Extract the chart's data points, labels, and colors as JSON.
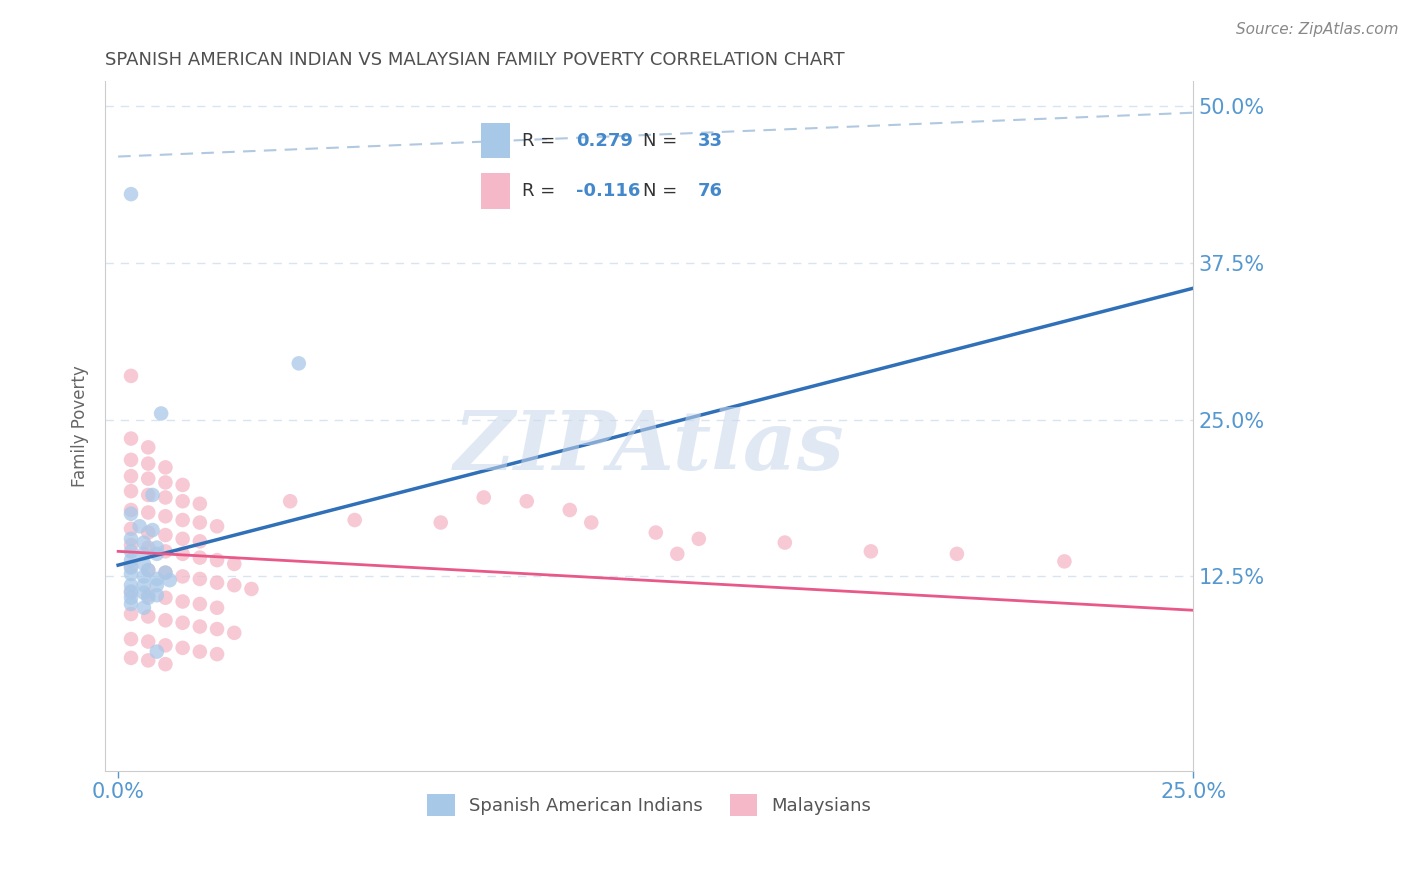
{
  "title": "SPANISH AMERICAN INDIAN VS MALAYSIAN FAMILY POVERTY CORRELATION CHART",
  "source": "Source: ZipAtlas.com",
  "ylabel": "Family Poverty",
  "watermark": "ZIPAtlas",
  "xlim": [
    -0.003,
    0.25
  ],
  "ylim": [
    -0.03,
    0.52
  ],
  "ytick_labels": [
    "12.5%",
    "25.0%",
    "37.5%",
    "50.0%"
  ],
  "ytick_values": [
    0.125,
    0.25,
    0.375,
    0.5
  ],
  "blue_R": 0.279,
  "blue_N": 33,
  "pink_R": -0.116,
  "pink_N": 76,
  "blue_color": "#a8c8e8",
  "pink_color": "#f4b8c8",
  "blue_line_color": "#3070b8",
  "pink_line_color": "#e85888",
  "label_color": "#5598d0",
  "title_color": "#505050",
  "grid_color": "#d8e4f0",
  "dashed_line_color": "#b0c8e0",
  "legend_text_color": "#4488cc",
  "legend_border_color": "#d0d8e8",
  "blue_trend": [
    0.0,
    0.134,
    0.25,
    0.355
  ],
  "pink_trend": [
    0.0,
    0.145,
    0.25,
    0.098
  ],
  "dashed_trend": [
    0.0,
    0.46,
    0.25,
    0.495
  ],
  "blue_dots": [
    [
      0.003,
      0.43
    ],
    [
      0.01,
      0.255
    ],
    [
      0.008,
      0.19
    ],
    [
      0.003,
      0.175
    ],
    [
      0.005,
      0.165
    ],
    [
      0.008,
      0.162
    ],
    [
      0.003,
      0.155
    ],
    [
      0.006,
      0.152
    ],
    [
      0.009,
      0.148
    ],
    [
      0.003,
      0.145
    ],
    [
      0.006,
      0.143
    ],
    [
      0.009,
      0.143
    ],
    [
      0.003,
      0.138
    ],
    [
      0.006,
      0.135
    ],
    [
      0.003,
      0.132
    ],
    [
      0.007,
      0.13
    ],
    [
      0.011,
      0.128
    ],
    [
      0.003,
      0.127
    ],
    [
      0.006,
      0.125
    ],
    [
      0.009,
      0.123
    ],
    [
      0.012,
      0.122
    ],
    [
      0.003,
      0.118
    ],
    [
      0.006,
      0.118
    ],
    [
      0.009,
      0.118
    ],
    [
      0.003,
      0.113
    ],
    [
      0.006,
      0.112
    ],
    [
      0.009,
      0.11
    ],
    [
      0.003,
      0.108
    ],
    [
      0.007,
      0.108
    ],
    [
      0.003,
      0.103
    ],
    [
      0.006,
      0.1
    ],
    [
      0.009,
      0.065
    ],
    [
      0.042,
      0.295
    ]
  ],
  "pink_dots": [
    [
      0.003,
      0.285
    ],
    [
      0.003,
      0.235
    ],
    [
      0.007,
      0.228
    ],
    [
      0.003,
      0.218
    ],
    [
      0.007,
      0.215
    ],
    [
      0.011,
      0.212
    ],
    [
      0.003,
      0.205
    ],
    [
      0.007,
      0.203
    ],
    [
      0.011,
      0.2
    ],
    [
      0.015,
      0.198
    ],
    [
      0.003,
      0.193
    ],
    [
      0.007,
      0.19
    ],
    [
      0.011,
      0.188
    ],
    [
      0.015,
      0.185
    ],
    [
      0.019,
      0.183
    ],
    [
      0.003,
      0.178
    ],
    [
      0.007,
      0.176
    ],
    [
      0.011,
      0.173
    ],
    [
      0.015,
      0.17
    ],
    [
      0.019,
      0.168
    ],
    [
      0.023,
      0.165
    ],
    [
      0.003,
      0.163
    ],
    [
      0.007,
      0.16
    ],
    [
      0.011,
      0.158
    ],
    [
      0.015,
      0.155
    ],
    [
      0.019,
      0.153
    ],
    [
      0.003,
      0.15
    ],
    [
      0.007,
      0.148
    ],
    [
      0.011,
      0.145
    ],
    [
      0.015,
      0.143
    ],
    [
      0.019,
      0.14
    ],
    [
      0.023,
      0.138
    ],
    [
      0.027,
      0.135
    ],
    [
      0.003,
      0.133
    ],
    [
      0.007,
      0.13
    ],
    [
      0.011,
      0.128
    ],
    [
      0.015,
      0.125
    ],
    [
      0.019,
      0.123
    ],
    [
      0.023,
      0.12
    ],
    [
      0.027,
      0.118
    ],
    [
      0.031,
      0.115
    ],
    [
      0.003,
      0.112
    ],
    [
      0.007,
      0.11
    ],
    [
      0.011,
      0.108
    ],
    [
      0.015,
      0.105
    ],
    [
      0.019,
      0.103
    ],
    [
      0.023,
      0.1
    ],
    [
      0.003,
      0.095
    ],
    [
      0.007,
      0.093
    ],
    [
      0.011,
      0.09
    ],
    [
      0.015,
      0.088
    ],
    [
      0.019,
      0.085
    ],
    [
      0.023,
      0.083
    ],
    [
      0.027,
      0.08
    ],
    [
      0.003,
      0.075
    ],
    [
      0.007,
      0.073
    ],
    [
      0.011,
      0.07
    ],
    [
      0.015,
      0.068
    ],
    [
      0.019,
      0.065
    ],
    [
      0.023,
      0.063
    ],
    [
      0.003,
      0.06
    ],
    [
      0.007,
      0.058
    ],
    [
      0.011,
      0.055
    ],
    [
      0.04,
      0.185
    ],
    [
      0.055,
      0.17
    ],
    [
      0.075,
      0.168
    ],
    [
      0.085,
      0.188
    ],
    [
      0.095,
      0.185
    ],
    [
      0.105,
      0.178
    ],
    [
      0.11,
      0.168
    ],
    [
      0.125,
      0.16
    ],
    [
      0.135,
      0.155
    ],
    [
      0.13,
      0.143
    ],
    [
      0.155,
      0.152
    ],
    [
      0.175,
      0.145
    ],
    [
      0.195,
      0.143
    ],
    [
      0.22,
      0.137
    ]
  ]
}
